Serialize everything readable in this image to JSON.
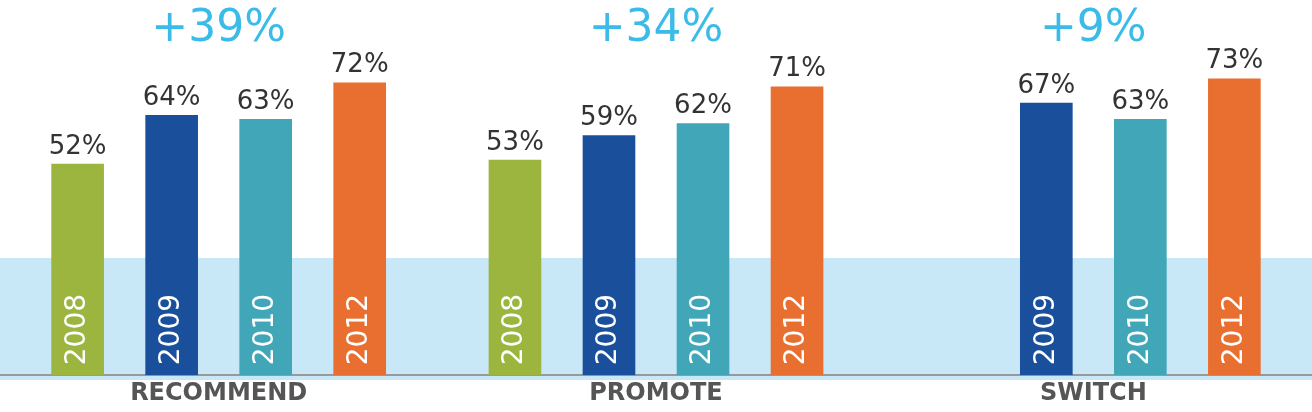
{
  "chart_data": {
    "type": "bar",
    "categories": [
      "RECOMMEND",
      "PROMOTE",
      "SWITCH"
    ],
    "series": [
      {
        "name": "2008",
        "color": "#9bb53e",
        "values": [
          52,
          53,
          null
        ],
        "value_labels": [
          "52%",
          "53%",
          null
        ]
      },
      {
        "name": "2009",
        "color": "#1a4f9c",
        "values": [
          64,
          59,
          67
        ],
        "value_labels": [
          "64%",
          "59%",
          "67%"
        ]
      },
      {
        "name": "2010",
        "color": "#40a6b8",
        "values": [
          63,
          62,
          63
        ],
        "value_labels": [
          "63%",
          "62%",
          "63%"
        ]
      },
      {
        "name": "2012",
        "color": "#e86f2f",
        "values": [
          72,
          71,
          73
        ],
        "value_labels": [
          "72%",
          "71%",
          "73%"
        ]
      }
    ],
    "annotations": [
      "+39%",
      "+34%",
      "+9%"
    ],
    "tick_labels": "x",
    "grid": false,
    "legend": false
  }
}
